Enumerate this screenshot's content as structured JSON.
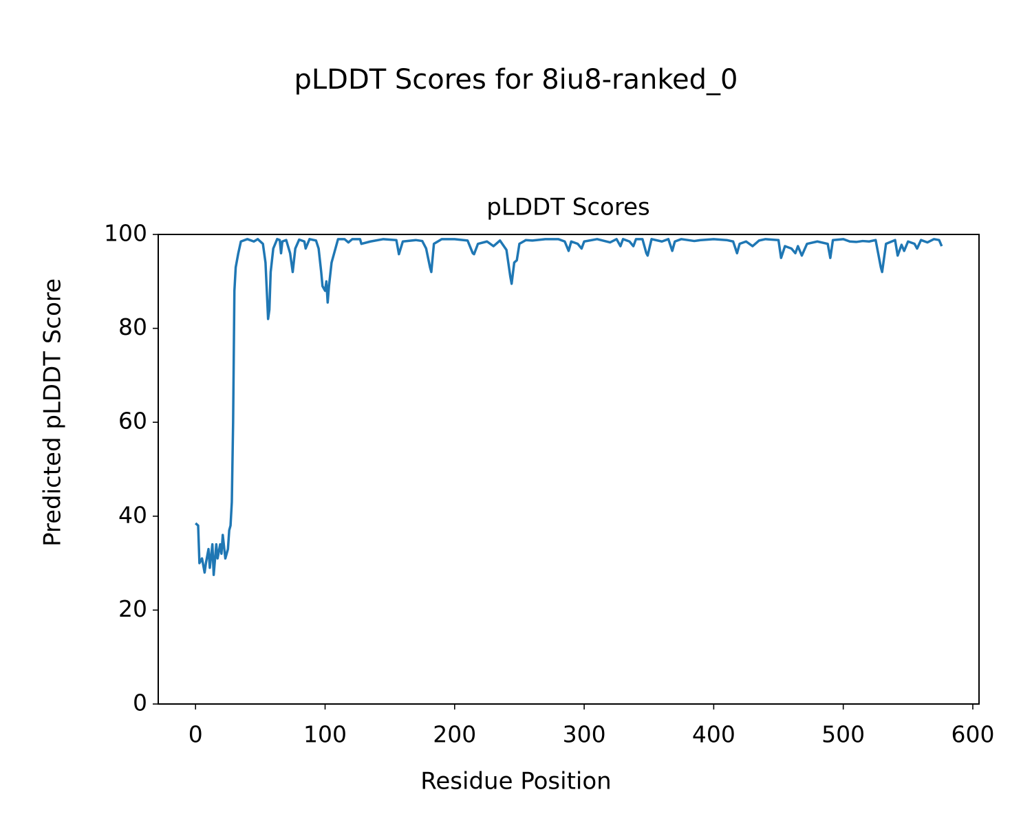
{
  "chart_data": {
    "type": "line",
    "suptitle": "pLDDT Scores for 8iu8-ranked_0",
    "title": "pLDDT Scores",
    "xlabel": "Residue Position",
    "ylabel": "Predicted pLDDT Score",
    "color": "#1f77b4",
    "xlim": [
      -28.8,
      604.8
    ],
    "xticks": [
      0,
      100,
      200,
      300,
      400,
      500,
      600
    ],
    "ylim": [
      0,
      100
    ],
    "yticks": [
      0,
      20,
      40,
      60,
      80,
      100
    ],
    "x": [
      0,
      2,
      3,
      5,
      7,
      8,
      10,
      11,
      13,
      14,
      16,
      17,
      19,
      20,
      21,
      23,
      25,
      26,
      27,
      28,
      29,
      30,
      31,
      33,
      35,
      40,
      45,
      48,
      52,
      54,
      56,
      57,
      58,
      60,
      63,
      65,
      66,
      67,
      70,
      73,
      75,
      77,
      80,
      84,
      85,
      88,
      93,
      95,
      97,
      98,
      100,
      101,
      102,
      103,
      105,
      107,
      110,
      115,
      118,
      121,
      127,
      128,
      135,
      145,
      155,
      157,
      160,
      170,
      175,
      178,
      181,
      182,
      184,
      190,
      200,
      210,
      214,
      215,
      218,
      225,
      230,
      235,
      240,
      243,
      244,
      246,
      248,
      250,
      255,
      260,
      270,
      280,
      285,
      288,
      290,
      295,
      298,
      300,
      310,
      320,
      325,
      328,
      330,
      335,
      338,
      340,
      345,
      348,
      349,
      352,
      360,
      365,
      368,
      370,
      375,
      385,
      390,
      400,
      410,
      415,
      418,
      420,
      425,
      430,
      435,
      440,
      450,
      452,
      455,
      460,
      463,
      465,
      468,
      472,
      480,
      488,
      490,
      492,
      500,
      505,
      510,
      515,
      520,
      525,
      529,
      530,
      533,
      540,
      542,
      545,
      547,
      550,
      555,
      557,
      560,
      565,
      570,
      574,
      576
    ],
    "values": [
      38.5,
      38,
      30,
      31,
      28,
      30,
      33,
      29,
      34,
      27.5,
      34,
      31,
      34,
      32,
      36,
      31,
      33,
      37,
      38,
      43,
      60,
      88,
      93,
      96,
      98.5,
      99,
      98.5,
      99,
      98,
      94,
      82,
      84,
      92,
      97,
      99,
      98.8,
      96,
      98.5,
      98.8,
      96,
      92,
      97,
      98.9,
      98.5,
      97,
      99,
      98.7,
      97,
      92,
      89,
      88,
      90,
      85.5,
      89,
      94,
      96,
      99,
      99,
      98.3,
      99,
      99,
      98,
      98.5,
      99,
      98.8,
      95.8,
      98.5,
      98.8,
      98.6,
      97,
      93,
      92,
      98,
      99,
      99,
      98.7,
      96,
      95.8,
      98,
      98.5,
      97.5,
      98.7,
      96.7,
      91,
      89.5,
      94,
      94.5,
      98,
      98.8,
      98.7,
      99,
      99,
      98.5,
      96.5,
      98.5,
      98,
      97,
      98.5,
      99,
      98.3,
      99,
      97.5,
      99,
      98.5,
      97.5,
      99,
      99,
      96,
      95.5,
      99,
      98.5,
      99,
      96.5,
      98.5,
      99,
      98.6,
      98.8,
      99,
      98.8,
      98.5,
      96,
      98,
      98.5,
      97.5,
      98.7,
      99,
      98.8,
      95,
      97.5,
      97,
      96,
      97.5,
      95.5,
      98,
      98.5,
      98,
      95,
      98.8,
      99,
      98.5,
      98.4,
      98.6,
      98.5,
      98.8,
      93,
      92,
      98,
      98.8,
      95.5,
      97.8,
      96.5,
      98.5,
      98,
      97,
      98.8,
      98.3,
      99,
      98.8,
      97.5
    ]
  }
}
